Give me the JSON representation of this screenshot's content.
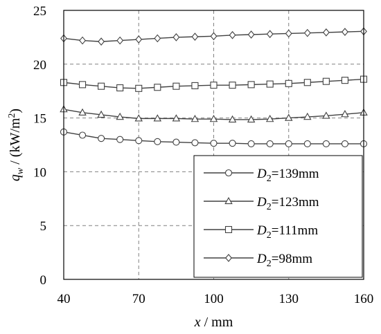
{
  "chart_data": {
    "type": "line",
    "xlabel": {
      "var": "x",
      "unit": " / mm"
    },
    "ylabel": {
      "var": "q",
      "sub": "w",
      "unit": " / (kW/m",
      "sup": "2",
      "close": ")"
    },
    "xlim": [
      40,
      160
    ],
    "ylim": [
      0,
      25
    ],
    "xticks": [
      40,
      70,
      100,
      130,
      160
    ],
    "yticks": [
      0,
      5,
      10,
      15,
      20,
      25
    ],
    "grid": true,
    "grid_style": "dashed",
    "legend_position": "bottom-right",
    "series": [
      {
        "name": {
          "var": "D",
          "sub": "2",
          "rest": "=139mm"
        },
        "marker": "circle",
        "x": [
          40,
          47.5,
          55,
          62.5,
          70,
          77.5,
          85,
          92.5,
          100,
          107.5,
          115,
          122.5,
          130,
          137.5,
          145,
          152.5,
          160
        ],
        "y": [
          13.7,
          13.4,
          13.1,
          13.0,
          12.9,
          12.8,
          12.75,
          12.7,
          12.65,
          12.65,
          12.6,
          12.6,
          12.6,
          12.6,
          12.6,
          12.6,
          12.6
        ]
      },
      {
        "name": {
          "var": "D",
          "sub": "2",
          "rest": "=123mm"
        },
        "marker": "triangle",
        "x": [
          40,
          47.5,
          55,
          62.5,
          70,
          77.5,
          85,
          92.5,
          100,
          107.5,
          115,
          122.5,
          130,
          137.5,
          145,
          152.5,
          160
        ],
        "y": [
          15.8,
          15.5,
          15.3,
          15.1,
          14.95,
          14.95,
          14.95,
          14.9,
          14.9,
          14.85,
          14.85,
          14.9,
          15.0,
          15.1,
          15.2,
          15.35,
          15.5
        ]
      },
      {
        "name": {
          "var": "D",
          "sub": "2",
          "rest": "=111mm"
        },
        "marker": "square",
        "x": [
          40,
          47.5,
          55,
          62.5,
          70,
          77.5,
          85,
          92.5,
          100,
          107.5,
          115,
          122.5,
          130,
          137.5,
          145,
          152.5,
          160
        ],
        "y": [
          18.3,
          18.1,
          17.95,
          17.8,
          17.75,
          17.85,
          17.95,
          18.0,
          18.05,
          18.05,
          18.1,
          18.15,
          18.2,
          18.3,
          18.4,
          18.5,
          18.6
        ]
      },
      {
        "name": {
          "var": "D",
          "sub": "2",
          "rest": "=98mm"
        },
        "marker": "diamond",
        "x": [
          40,
          47.5,
          55,
          62.5,
          70,
          77.5,
          85,
          92.5,
          100,
          107.5,
          115,
          122.5,
          130,
          137.5,
          145,
          152.5,
          160
        ],
        "y": [
          22.4,
          22.2,
          22.1,
          22.2,
          22.3,
          22.4,
          22.5,
          22.55,
          22.6,
          22.7,
          22.75,
          22.8,
          22.85,
          22.9,
          22.95,
          23.0,
          23.05
        ]
      }
    ]
  }
}
